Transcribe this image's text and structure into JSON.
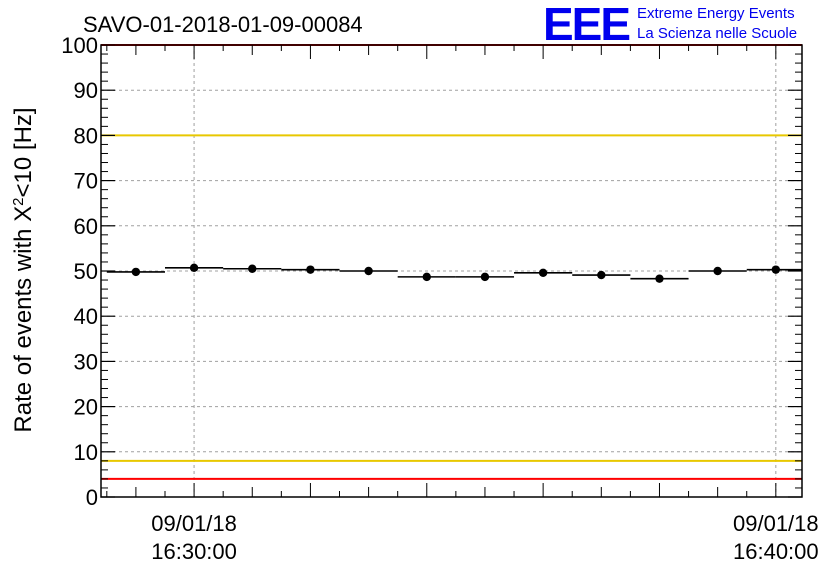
{
  "chart_data": {
    "type": "scatter",
    "title": "SAVO-01-2018-01-09-00084",
    "ylabel_main": "Rate of events with X",
    "ylabel_sup": "2",
    "ylabel_tail": "<10 [Hz]",
    "xlabel": "",
    "ylim": [
      0,
      100
    ],
    "yticks": [
      0,
      10,
      20,
      30,
      40,
      50,
      60,
      70,
      80,
      90,
      100
    ],
    "xticks": [
      {
        "t": 1,
        "date": "09/01/18",
        "time": "16:30:00"
      },
      {
        "t": 11,
        "date": "09/01/18",
        "time": "16:40:00"
      }
    ],
    "xlim": [
      -0.6,
      11.45
    ],
    "grid": true,
    "series": [
      {
        "name": "rate",
        "points": [
          {
            "t": 0.0,
            "y": 49.8
          },
          {
            "t": 1.0,
            "y": 50.7
          },
          {
            "t": 2.0,
            "y": 50.5
          },
          {
            "t": 3.0,
            "y": 50.3
          },
          {
            "t": 4.0,
            "y": 50.0
          },
          {
            "t": 5.0,
            "y": 48.7
          },
          {
            "t": 6.0,
            "y": 48.7
          },
          {
            "t": 7.0,
            "y": 49.6
          },
          {
            "t": 8.0,
            "y": 49.1
          },
          {
            "t": 9.0,
            "y": 48.3
          },
          {
            "t": 10.0,
            "y": 50.0
          },
          {
            "t": 11.0,
            "y": 50.3
          }
        ],
        "bin_halfwidth": 0.5,
        "color": "#000000"
      }
    ],
    "reference_lines": [
      {
        "name": "upper-red-line",
        "y": 100,
        "color": "#ff0000"
      },
      {
        "name": "upper-yellow-line",
        "y": 80,
        "color": "#e8c800"
      },
      {
        "name": "lower-yellow-line",
        "y": 8,
        "color": "#e8c800"
      },
      {
        "name": "lower-red-line",
        "y": 4,
        "color": "#ff0000"
      }
    ]
  },
  "logo": {
    "text": "EEE",
    "line1": "Extreme Energy Events",
    "line2": "La Scienza nelle Scuole",
    "color": "#0000ee"
  }
}
